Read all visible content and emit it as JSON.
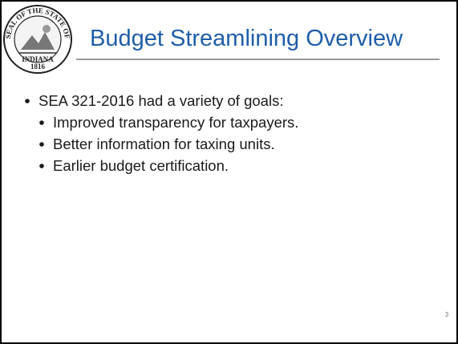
{
  "slide": {
    "title": "Budget Streamlining Overview",
    "seal": {
      "top": "SEAL OF THE STATE OF",
      "bottom": "INDIANA",
      "year": "1816"
    },
    "bullets": [
      {
        "text": "SEA 321-2016 had a variety of goals:",
        "children": [
          "Improved transparency for taxpayers.",
          "Better information for taxing units.",
          "Earlier budget certification."
        ]
      }
    ],
    "page_number": "3"
  }
}
